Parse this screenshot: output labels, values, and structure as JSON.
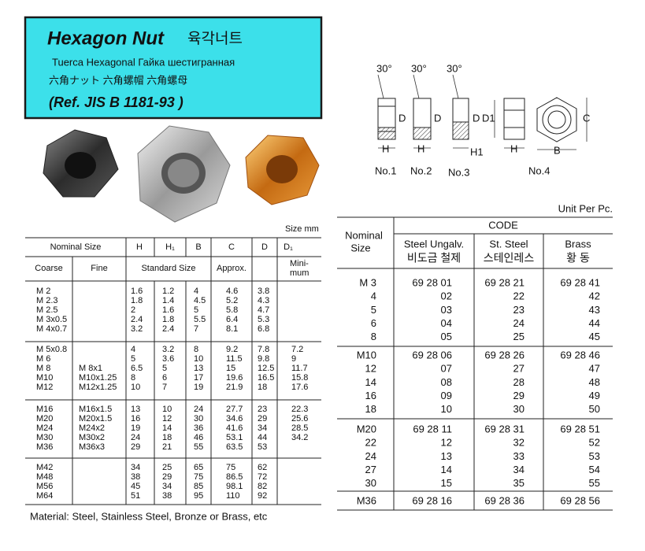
{
  "header": {
    "title": "Hexagon Nut",
    "title_ko": "육각너트",
    "line2": "Tuerca Hexagonal  Гайка шестигранная",
    "line3": "六角ナット    六角螺帽  六角螺母",
    "ref": "(Ref. JIS B 1181-93 )"
  },
  "diagram": {
    "views": [
      {
        "angle": "30°",
        "d": "D",
        "h": "H",
        "caption": "No.1"
      },
      {
        "angle": "30°",
        "d": "D",
        "h": "H",
        "caption": "No.2"
      },
      {
        "angle": "30°",
        "d": "D",
        "h": "H1",
        "caption": "No.3"
      },
      {
        "d": "D1",
        "h": "H",
        "c": "C",
        "b": "B",
        "caption": "No.4"
      }
    ]
  },
  "size_table": {
    "unit": "Size mm",
    "headers": [
      "Nominal Size",
      "H",
      "H₁",
      "B",
      "C",
      "D",
      "D₁"
    ],
    "subheaders": [
      "Coarse",
      "Fine",
      "Standard Size",
      "Approx."
    ],
    "minimum": [
      "Mini-",
      "mum"
    ],
    "groups": [
      [
        [
          "M 2",
          "",
          "1.6",
          "1.2",
          "4",
          "4.6",
          "3.8",
          ""
        ],
        [
          "M 2.3",
          "",
          "1.8",
          "1.4",
          "4.5",
          "5.2",
          "4.3",
          ""
        ],
        [
          "M 2.5",
          "",
          "2",
          "1.6",
          "5",
          "5.8",
          "4.7",
          ""
        ],
        [
          "M 3x0.5",
          "",
          "2.4",
          "1.8",
          "5.5",
          "6.4",
          "5.3",
          ""
        ],
        [
          "M 4x0.7",
          "",
          "3.2",
          "2.4",
          "7",
          "8.1",
          "6.8",
          ""
        ]
      ],
      [
        [
          "M 5x0.8",
          "",
          "4",
          "3.2",
          "8",
          "9.2",
          "7.8",
          "7.2"
        ],
        [
          "M 6",
          "",
          "5",
          "3.6",
          "10",
          "11.5",
          "9.8",
          "9"
        ],
        [
          "M 8",
          "M 8x1",
          "6.5",
          "5",
          "13",
          "15",
          "12.5",
          "11.7"
        ],
        [
          "M10",
          "M10x1.25",
          "8",
          "6",
          "17",
          "19.6",
          "16.5",
          "15.8"
        ],
        [
          "M12",
          "M12x1.25",
          "10",
          "7",
          "19",
          "21.9",
          "18",
          "17.6"
        ]
      ],
      [
        [
          "M16",
          "M16x1.5",
          "13",
          "10",
          "24",
          "27.7",
          "23",
          "22.3"
        ],
        [
          "M20",
          "M20x1.5",
          "16",
          "12",
          "30",
          "34.6",
          "29",
          "25.6"
        ],
        [
          "M24",
          "M24x2",
          "19",
          "14",
          "36",
          "41.6",
          "34",
          "28.5"
        ],
        [
          "M30",
          "M30x2",
          "24",
          "18",
          "46",
          "53.1",
          "44",
          "34.2"
        ],
        [
          "M36",
          "M36x3",
          "29",
          "21",
          "55",
          "63.5",
          "53",
          ""
        ]
      ],
      [
        [
          "M42",
          "",
          "34",
          "25",
          "65",
          "75",
          "62",
          ""
        ],
        [
          "M48",
          "",
          "38",
          "29",
          "75",
          "86.5",
          "72",
          ""
        ],
        [
          "M56",
          "",
          "45",
          "34",
          "85",
          "98.1",
          "82",
          ""
        ],
        [
          "M64",
          "",
          "51",
          "38",
          "95",
          "110",
          "92",
          ""
        ]
      ]
    ],
    "material": "Material: Steel, Stainless Steel, Bronze or Brass, etc"
  },
  "code_table": {
    "unit": "Unit Per Pc.",
    "nominal": [
      "Nominal",
      "Size"
    ],
    "code": "CODE",
    "columns": [
      [
        "Steel Ungalv.",
        "비도금 철제"
      ],
      [
        "St. Steel",
        "스테인레스"
      ],
      [
        "Brass",
        "황 동"
      ]
    ],
    "groups": [
      [
        [
          "M 3",
          "69 28 01",
          "69 28 21",
          "69 28 41"
        ],
        [
          "4",
          "02",
          "22",
          "42"
        ],
        [
          "5",
          "03",
          "23",
          "43"
        ],
        [
          "6",
          "04",
          "24",
          "44"
        ],
        [
          "8",
          "05",
          "25",
          "45"
        ]
      ],
      [
        [
          "M10",
          "69 28 06",
          "69 28 26",
          "69 28 46"
        ],
        [
          "12",
          "07",
          "27",
          "47"
        ],
        [
          "14",
          "08",
          "28",
          "48"
        ],
        [
          "16",
          "09",
          "29",
          "49"
        ],
        [
          "18",
          "10",
          "30",
          "50"
        ]
      ],
      [
        [
          "M20",
          "69 28 11",
          "69 28 31",
          "69 28 51"
        ],
        [
          "22",
          "12",
          "32",
          "52"
        ],
        [
          "24",
          "13",
          "33",
          "53"
        ],
        [
          "27",
          "14",
          "34",
          "54"
        ],
        [
          "30",
          "15",
          "35",
          "55"
        ]
      ],
      [
        [
          "M36",
          "69 28 16",
          "69 28 36",
          "69 28 56"
        ]
      ]
    ]
  }
}
